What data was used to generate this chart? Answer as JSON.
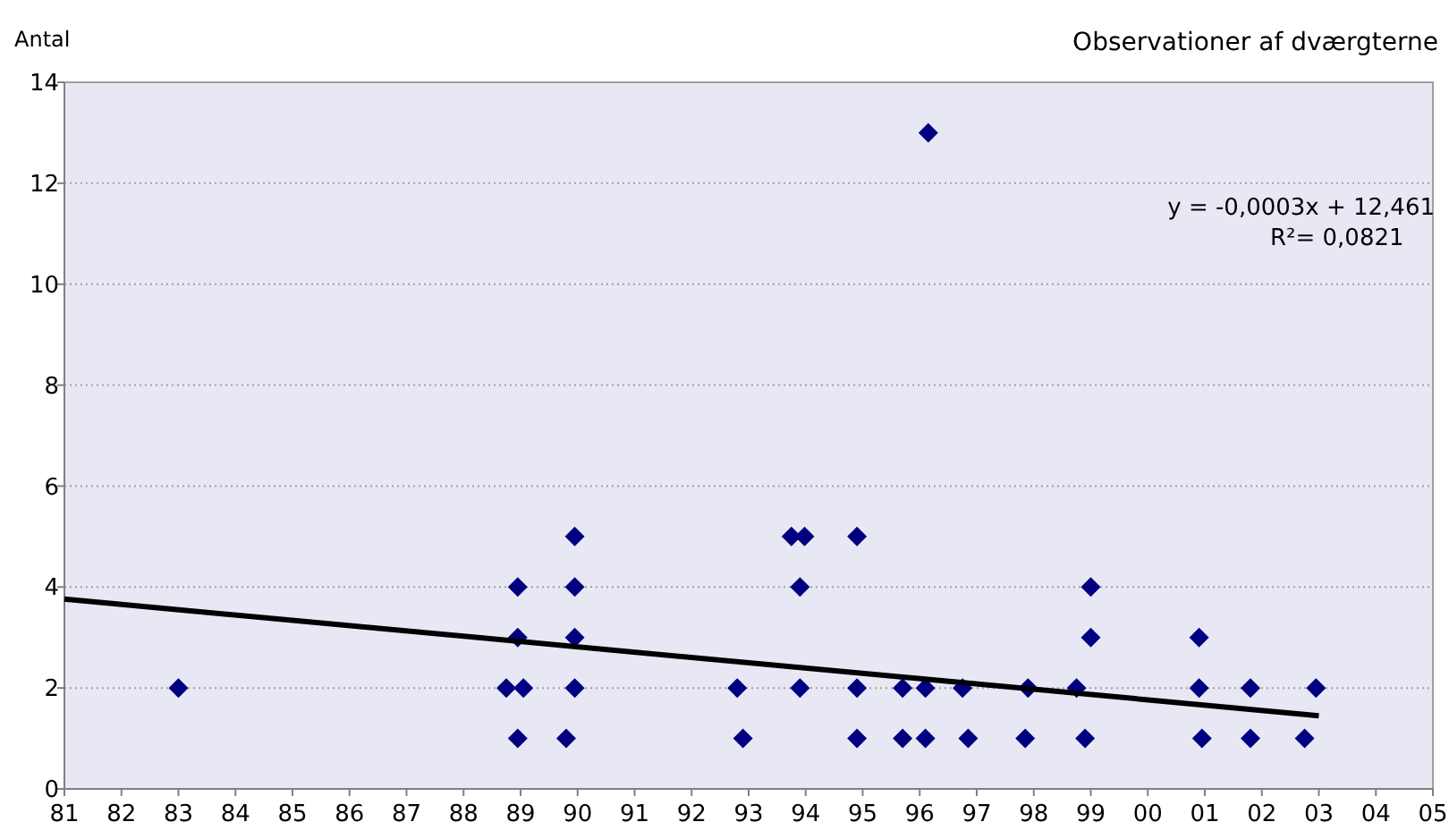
{
  "chart_data": {
    "type": "scatter",
    "title": "Observationer af dværgterne",
    "ylabel": "Antal",
    "annotations": [
      "y = -0,0003x + 12,461",
      "R²= 0,0821"
    ],
    "xlim": [
      1981,
      2005
    ],
    "xticks": [
      {
        "value": 1981,
        "label": "81"
      },
      {
        "value": 1982,
        "label": "82"
      },
      {
        "value": 1983,
        "label": "83"
      },
      {
        "value": 1984,
        "label": "84"
      },
      {
        "value": 1985,
        "label": "85"
      },
      {
        "value": 1986,
        "label": "86"
      },
      {
        "value": 1987,
        "label": "87"
      },
      {
        "value": 1988,
        "label": "88"
      },
      {
        "value": 1989,
        "label": "89"
      },
      {
        "value": 1990,
        "label": "90"
      },
      {
        "value": 1991,
        "label": "91"
      },
      {
        "value": 1992,
        "label": "92"
      },
      {
        "value": 1993,
        "label": "93"
      },
      {
        "value": 1994,
        "label": "94"
      },
      {
        "value": 1995,
        "label": "95"
      },
      {
        "value": 1996,
        "label": "96"
      },
      {
        "value": 1997,
        "label": "97"
      },
      {
        "value": 1998,
        "label": "98"
      },
      {
        "value": 1999,
        "label": "99"
      },
      {
        "value": 2000,
        "label": "00"
      },
      {
        "value": 2001,
        "label": "01"
      },
      {
        "value": 2002,
        "label": "02"
      },
      {
        "value": 2003,
        "label": "03"
      },
      {
        "value": 2004,
        "label": "04"
      },
      {
        "value": 2005,
        "label": "05"
      }
    ],
    "ylim": [
      0,
      14
    ],
    "yticks": [
      0,
      2,
      4,
      6,
      8,
      10,
      12,
      14
    ],
    "grid": "y",
    "marker": "diamond",
    "series": [
      {
        "color": "#000080",
        "x": [
          1983.0,
          1988.95,
          1989.05,
          1988.95,
          1988.95,
          1988.75,
          1989.8,
          1989.95,
          1989.95,
          1989.95,
          1989.95,
          1992.8,
          1992.9,
          1993.75,
          1993.98,
          1993.9,
          1993.9,
          1994.9,
          1994.9,
          1994.9,
          1995.7,
          1996.1,
          1995.7,
          1996.1,
          1996.15,
          1996.75,
          1996.85,
          1997.9,
          1997.85,
          1998.75,
          1998.9,
          1999.0,
          1999.0,
          2000.9,
          2000.9,
          2000.95,
          2001.8,
          2001.8,
          2002.95,
          2002.75
        ],
        "values": [
          2,
          1,
          2,
          3,
          4,
          2,
          1,
          2,
          3,
          4,
          5,
          2,
          1,
          5,
          5,
          4,
          2,
          5,
          2,
          1,
          2,
          2,
          1,
          1,
          13,
          2,
          1,
          2,
          1,
          2,
          1,
          3,
          4,
          3,
          2,
          1,
          2,
          1,
          2,
          1
        ]
      },
      {
        "type": "line",
        "color": "#000000",
        "x": [
          1981,
          2003
        ],
        "values": [
          3.76,
          1.45
        ],
        "marker": "none",
        "line_style": "solid"
      }
    ]
  }
}
